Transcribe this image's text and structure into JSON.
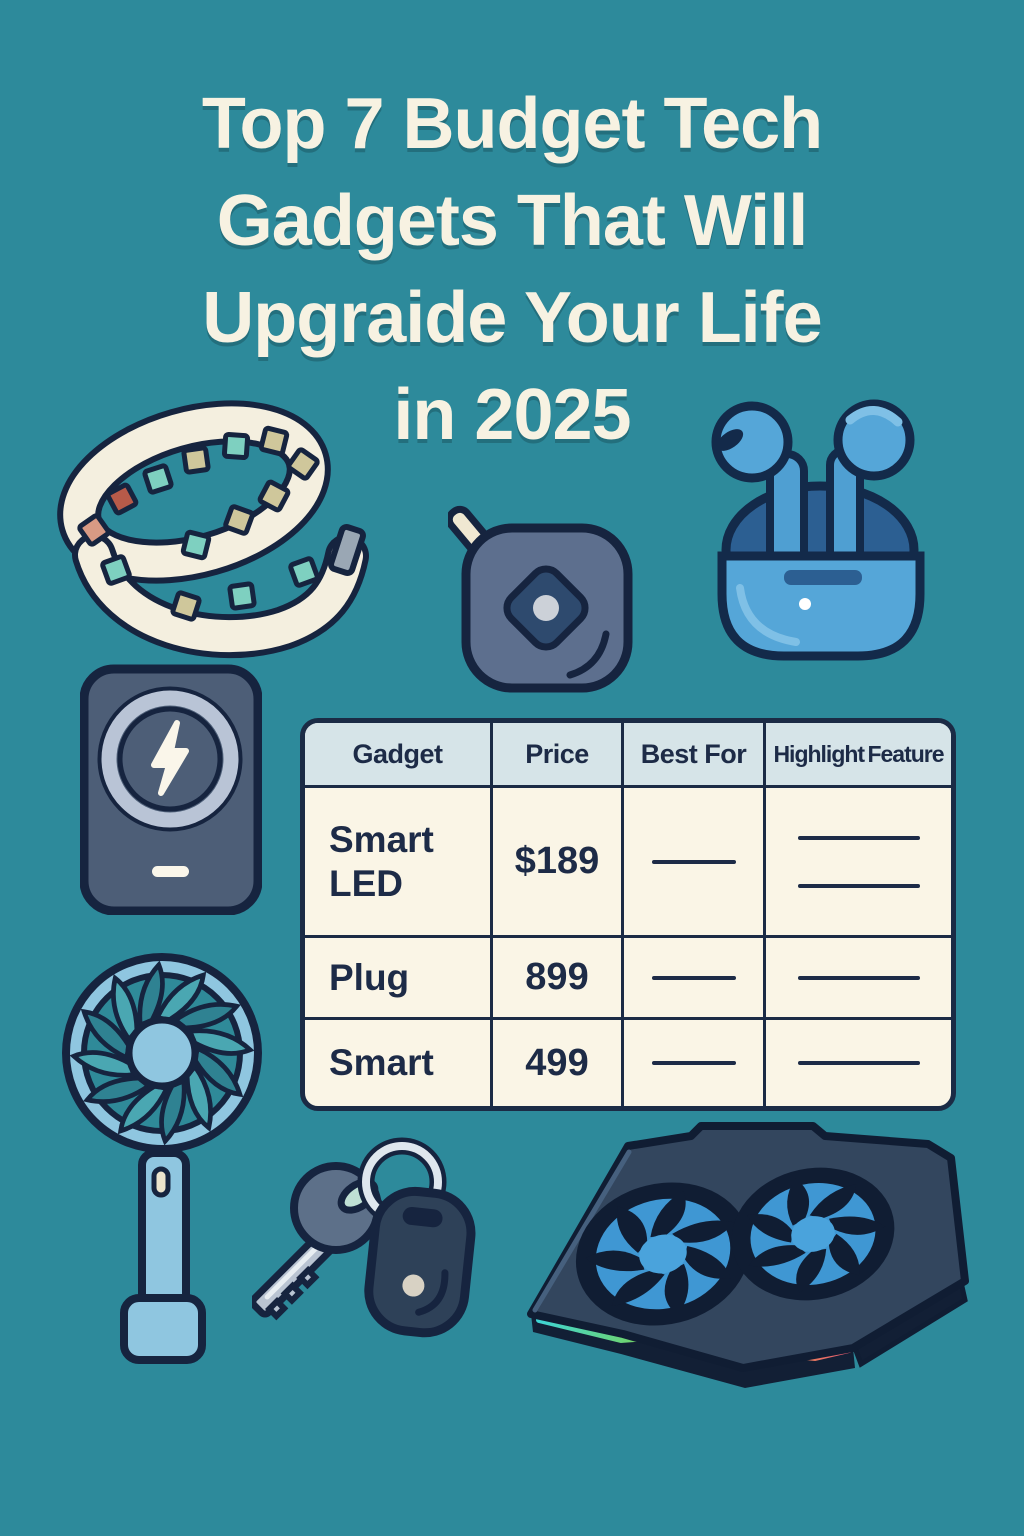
{
  "poster": {
    "background_color": "#2d8a9b",
    "outline_color": "#16243f",
    "title": {
      "color": "#f7f2e2",
      "lines": [
        "Top 7 Budget Tech",
        "Gadgets That Will",
        "Upgraide Your Life",
        "in 2025"
      ]
    },
    "table": {
      "border_color": "#1b2b45",
      "header_bg": "#d6e4e8",
      "cell_bg": "#faf5e6",
      "text_color": "#1d2b47",
      "headers": [
        "Gadget",
        "Price",
        "Best For",
        "Highlight Feature"
      ],
      "rows": [
        {
          "gadget": "Smart LED",
          "price": "$189",
          "best_for_lines": 1,
          "highlight_lines": 2
        },
        {
          "gadget": "Plug",
          "price": "899",
          "best_for_lines": 1,
          "highlight_lines": 1
        },
        {
          "gadget": "Smart",
          "price": "499",
          "best_for_lines": 1,
          "highlight_lines": 1
        }
      ]
    },
    "illustrations": [
      {
        "name": "led-light-strip"
      },
      {
        "name": "bluetooth-tracker-tag"
      },
      {
        "name": "wireless-earbuds-case"
      },
      {
        "name": "magnetic-power-bank"
      },
      {
        "name": "handheld-fan"
      },
      {
        "name": "car-key-with-tracker-fob"
      },
      {
        "name": "laptop-cooling-pad"
      }
    ],
    "accent_colors": {
      "light_blue": "#57a7d8",
      "fan_blue": "#8fc6e0",
      "slate": "#5d6f8e",
      "cream": "#f4efdf",
      "rgb_strip": [
        "#3fd4d4",
        "#6fd46f",
        "#e8d45a",
        "#e89a4a",
        "#e85a72"
      ]
    }
  }
}
